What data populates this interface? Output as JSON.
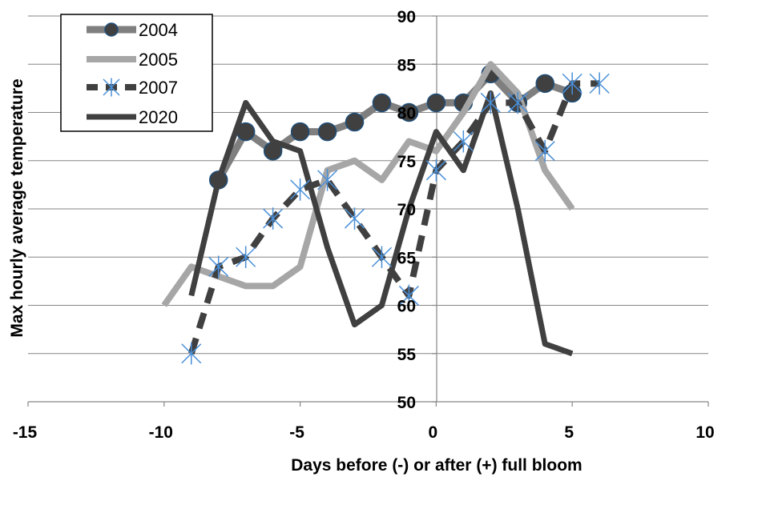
{
  "chart_data": {
    "type": "line",
    "xlabel": "Days before  (-) or after  (+) full bloom",
    "ylabel": "Max hourly average temperature",
    "xlim": [
      -15,
      10
    ],
    "ylim": [
      50,
      90
    ],
    "x_ticks": [
      -15,
      -10,
      -5,
      0,
      5,
      10
    ],
    "y_ticks": [
      50,
      55,
      60,
      65,
      70,
      75,
      80,
      85,
      90
    ],
    "grid": "horizontal",
    "legend_position": "top-left",
    "series": [
      {
        "name": "2004",
        "color": "#7f7f7f",
        "marker": "circle",
        "dash": "solid",
        "x": [
          -8,
          -7,
          -6,
          -5,
          -4,
          -3,
          -2,
          -1,
          0,
          1,
          2,
          3,
          4,
          5
        ],
        "y": [
          73,
          78,
          76,
          78,
          78,
          79,
          81,
          80,
          81,
          81,
          84,
          81,
          83,
          82
        ]
      },
      {
        "name": "2005",
        "color": "#a6a6a6",
        "marker": "none",
        "dash": "solid",
        "x": [
          -10,
          -9,
          -8,
          -7,
          -6,
          -5,
          -4,
          -3,
          -2,
          -1,
          0,
          1,
          2,
          3,
          4,
          5
        ],
        "y": [
          60,
          64,
          63,
          62,
          62,
          64,
          74,
          75,
          73,
          77,
          76,
          80,
          85,
          82,
          74,
          70
        ]
      },
      {
        "name": "2007",
        "color": "#404040",
        "marker": "star",
        "dash": "dashed",
        "x": [
          -9,
          -8,
          -7,
          -6,
          -5,
          -4,
          -3,
          -2,
          -1,
          0,
          1,
          2,
          3,
          4,
          5,
          6
        ],
        "y": [
          55,
          64,
          65,
          69,
          72,
          73,
          69,
          65,
          61,
          74,
          77,
          81,
          81,
          76,
          83,
          83
        ]
      },
      {
        "name": "2020",
        "color": "#404040",
        "marker": "none",
        "dash": "solid",
        "x": [
          -9,
          -8,
          -7,
          -6,
          -5,
          -4,
          -3,
          -2,
          -1,
          0,
          1,
          2,
          3,
          4,
          5
        ],
        "y": [
          61,
          73,
          81,
          77,
          76,
          66,
          58,
          60,
          70,
          78,
          74,
          82,
          70,
          56,
          55
        ]
      }
    ]
  }
}
